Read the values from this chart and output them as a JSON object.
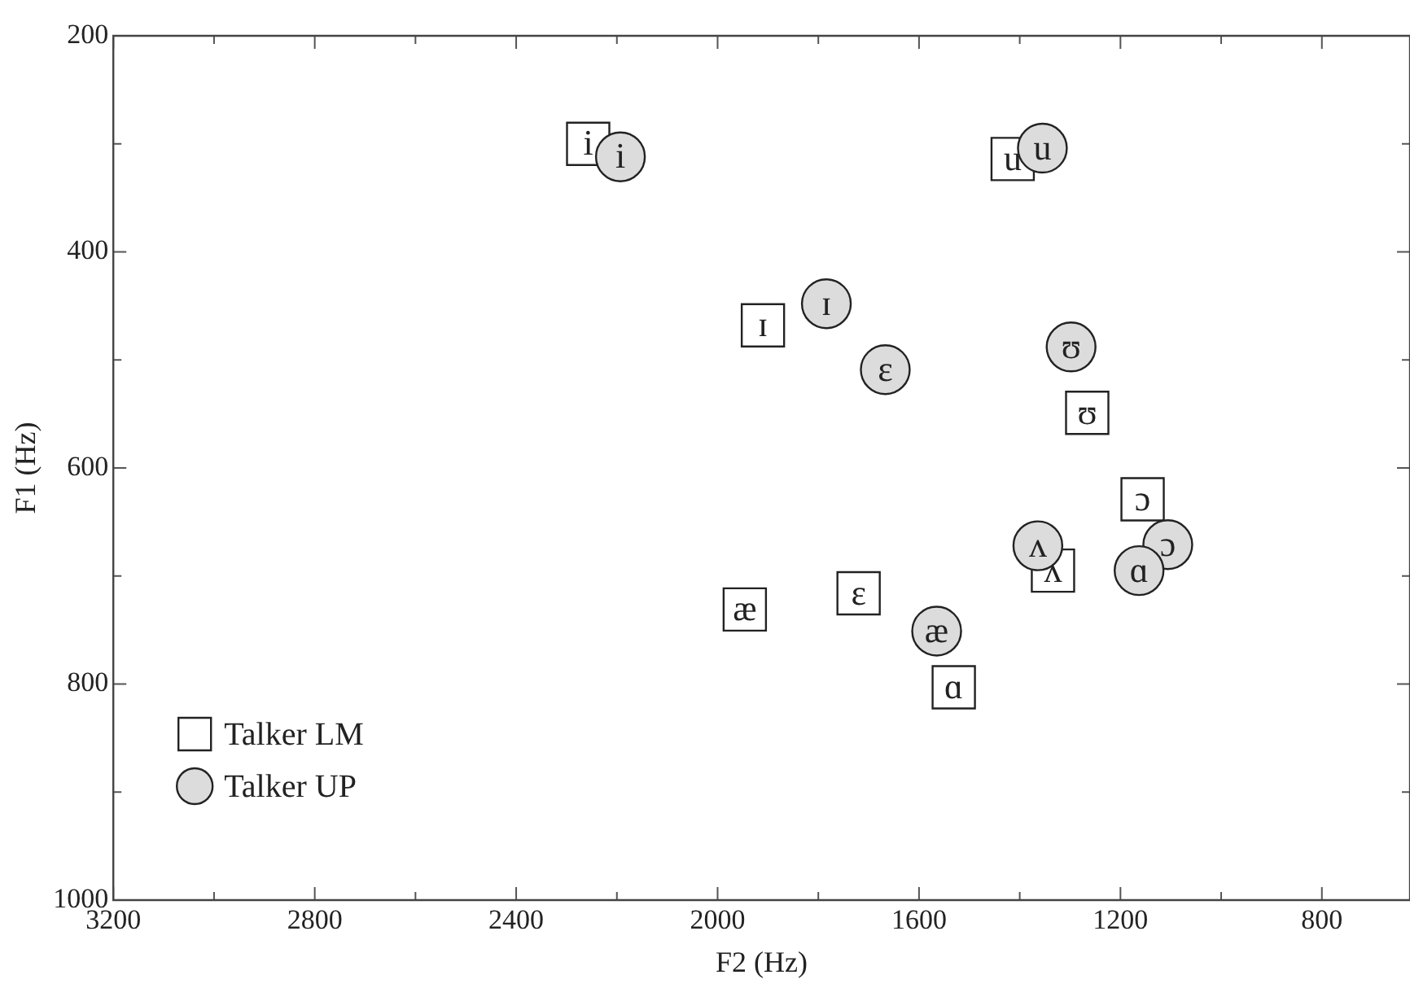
{
  "chart_data": {
    "type": "scatter",
    "xlabel": "F2 (Hz)",
    "ylabel": "F1 (Hz)",
    "xlim": [
      3200,
      625
    ],
    "xticks": [
      3200,
      {
        "value": 3000,
        "label": null
      },
      2800,
      {
        "value": 2600,
        "label": null
      },
      2400,
      {
        "value": 2200,
        "label": null
      },
      2000,
      {
        "value": 1800,
        "label": null
      },
      1600,
      {
        "value": 1400,
        "label": null
      },
      1200,
      {
        "value": 1000,
        "label": null
      },
      800
    ],
    "ylim": [
      1000,
      200
    ],
    "yticks": [
      1000,
      {
        "value": 900,
        "label": null
      },
      800,
      {
        "value": 700,
        "label": null
      },
      600,
      {
        "value": 500,
        "label": null
      },
      400,
      {
        "value": 300,
        "label": null
      },
      200
    ],
    "legend": "bottom left",
    "grid": false,
    "series": [
      {
        "name": "Talker LM",
        "marker": "square",
        "color": "#ffffff",
        "x": [
          2257,
          1414,
          1910,
          1266,
          1156,
          1334,
          1720,
          1946,
          1531
        ],
        "values": [
          300,
          314,
          468,
          549,
          629,
          695,
          716,
          731,
          803
        ],
        "value_labels": [
          "i",
          "u",
          "ɪ",
          "ʊ",
          "ɔ",
          "ʌ",
          "ɛ",
          "æ",
          "ɑ"
        ]
      },
      {
        "name": "Talker UP",
        "marker": "circle",
        "color": "#dcdcdc",
        "x": [
          2193,
          1355,
          1784,
          1667,
          1298,
          1364,
          1106,
          1163,
          1565
        ],
        "values": [
          312,
          304,
          448,
          509,
          488,
          672,
          671,
          695,
          751
        ],
        "value_labels": [
          "i",
          "u",
          "ɪ",
          "ɛ",
          "ʊ",
          "ʌ",
          "ɔ",
          "ɑ",
          "æ"
        ]
      }
    ]
  }
}
